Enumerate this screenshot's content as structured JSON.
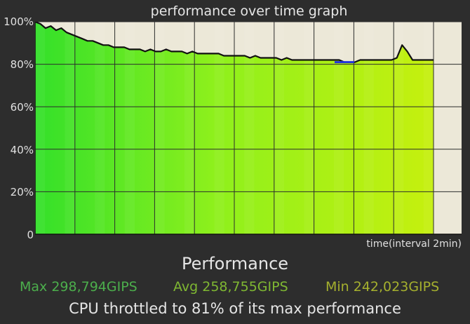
{
  "graph_title": "performance over time graph",
  "y_ticks": [
    "100%",
    "80%",
    "60%",
    "40%",
    "20%",
    "0"
  ],
  "x_axis_label": "time(interval 2min)",
  "section_title": "Performance",
  "stats": {
    "max": "Max 298,794GIPS",
    "avg": "Avg 258,755GIPS",
    "min": "Min 242,023GIPS"
  },
  "summary": "CPU throttled to 81% of its max performance",
  "colors": {
    "max": "#4cae4c",
    "avg": "#7fb832",
    "min": "#a5b02e",
    "plot_background": "#ece8d8",
    "line": "#111111",
    "dip_marker": "#2233dd"
  },
  "chart_data": {
    "type": "area",
    "title": "performance over time graph",
    "xlabel": "time(interval 2min)",
    "ylabel": "",
    "ylim": [
      0,
      100
    ],
    "yticks": [
      0,
      20,
      40,
      60,
      80,
      100
    ],
    "x_intervals": 10,
    "grid": true,
    "series": [
      {
        "values": [
          100,
          99,
          97,
          98,
          96,
          97,
          95,
          94,
          93,
          92,
          91,
          91,
          90,
          89,
          89,
          88,
          88,
          88,
          87,
          87,
          87,
          86,
          87,
          86,
          86,
          87,
          86,
          86,
          86,
          85,
          86,
          85,
          85,
          85,
          85,
          85,
          84,
          84,
          84,
          84,
          84,
          83,
          84,
          83,
          83,
          83,
          83,
          82,
          83,
          82,
          82,
          82,
          82,
          82,
          82,
          82,
          82,
          82,
          82,
          81,
          81,
          81,
          82,
          82,
          82,
          82,
          82,
          82,
          82,
          83,
          89,
          86,
          82,
          82,
          82,
          82,
          82
        ]
      }
    ]
  }
}
